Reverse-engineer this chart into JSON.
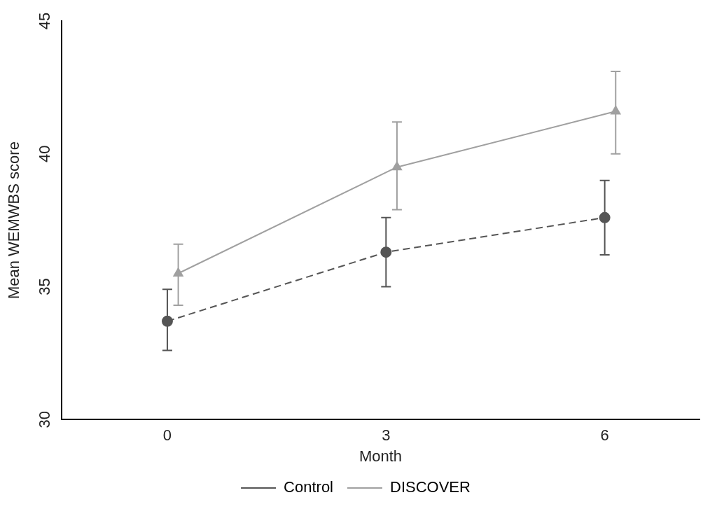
{
  "chart_data": {
    "type": "line",
    "xlabel": "Month",
    "ylabel": "Mean WEMWBS score",
    "xlim": [
      -1.45,
      7.3
    ],
    "xticks": [
      0,
      3,
      6
    ],
    "ylim": [
      30,
      45
    ],
    "yticks": [
      30,
      35,
      40,
      45
    ],
    "grid": false,
    "legend": "bottom",
    "series": [
      {
        "name": "Control",
        "color": "#555555",
        "x": [
          0,
          3,
          6
        ],
        "values": [
          33.7,
          36.3,
          37.6
        ],
        "errors": [
          [
            32.6,
            34.9
          ],
          [
            35.0,
            37.6
          ],
          [
            36.2,
            39.0
          ]
        ],
        "marker": "circle",
        "line_style": "dashed"
      },
      {
        "name": "DISCOVER",
        "color": "#a0a0a0",
        "x": [
          0.15,
          3.15,
          6.15
        ],
        "values": [
          35.5,
          39.5,
          41.6
        ],
        "errors": [
          [
            34.3,
            36.6
          ],
          [
            37.9,
            41.2
          ],
          [
            40.0,
            43.1
          ]
        ],
        "marker": "triangle",
        "line_style": "solid"
      }
    ]
  }
}
